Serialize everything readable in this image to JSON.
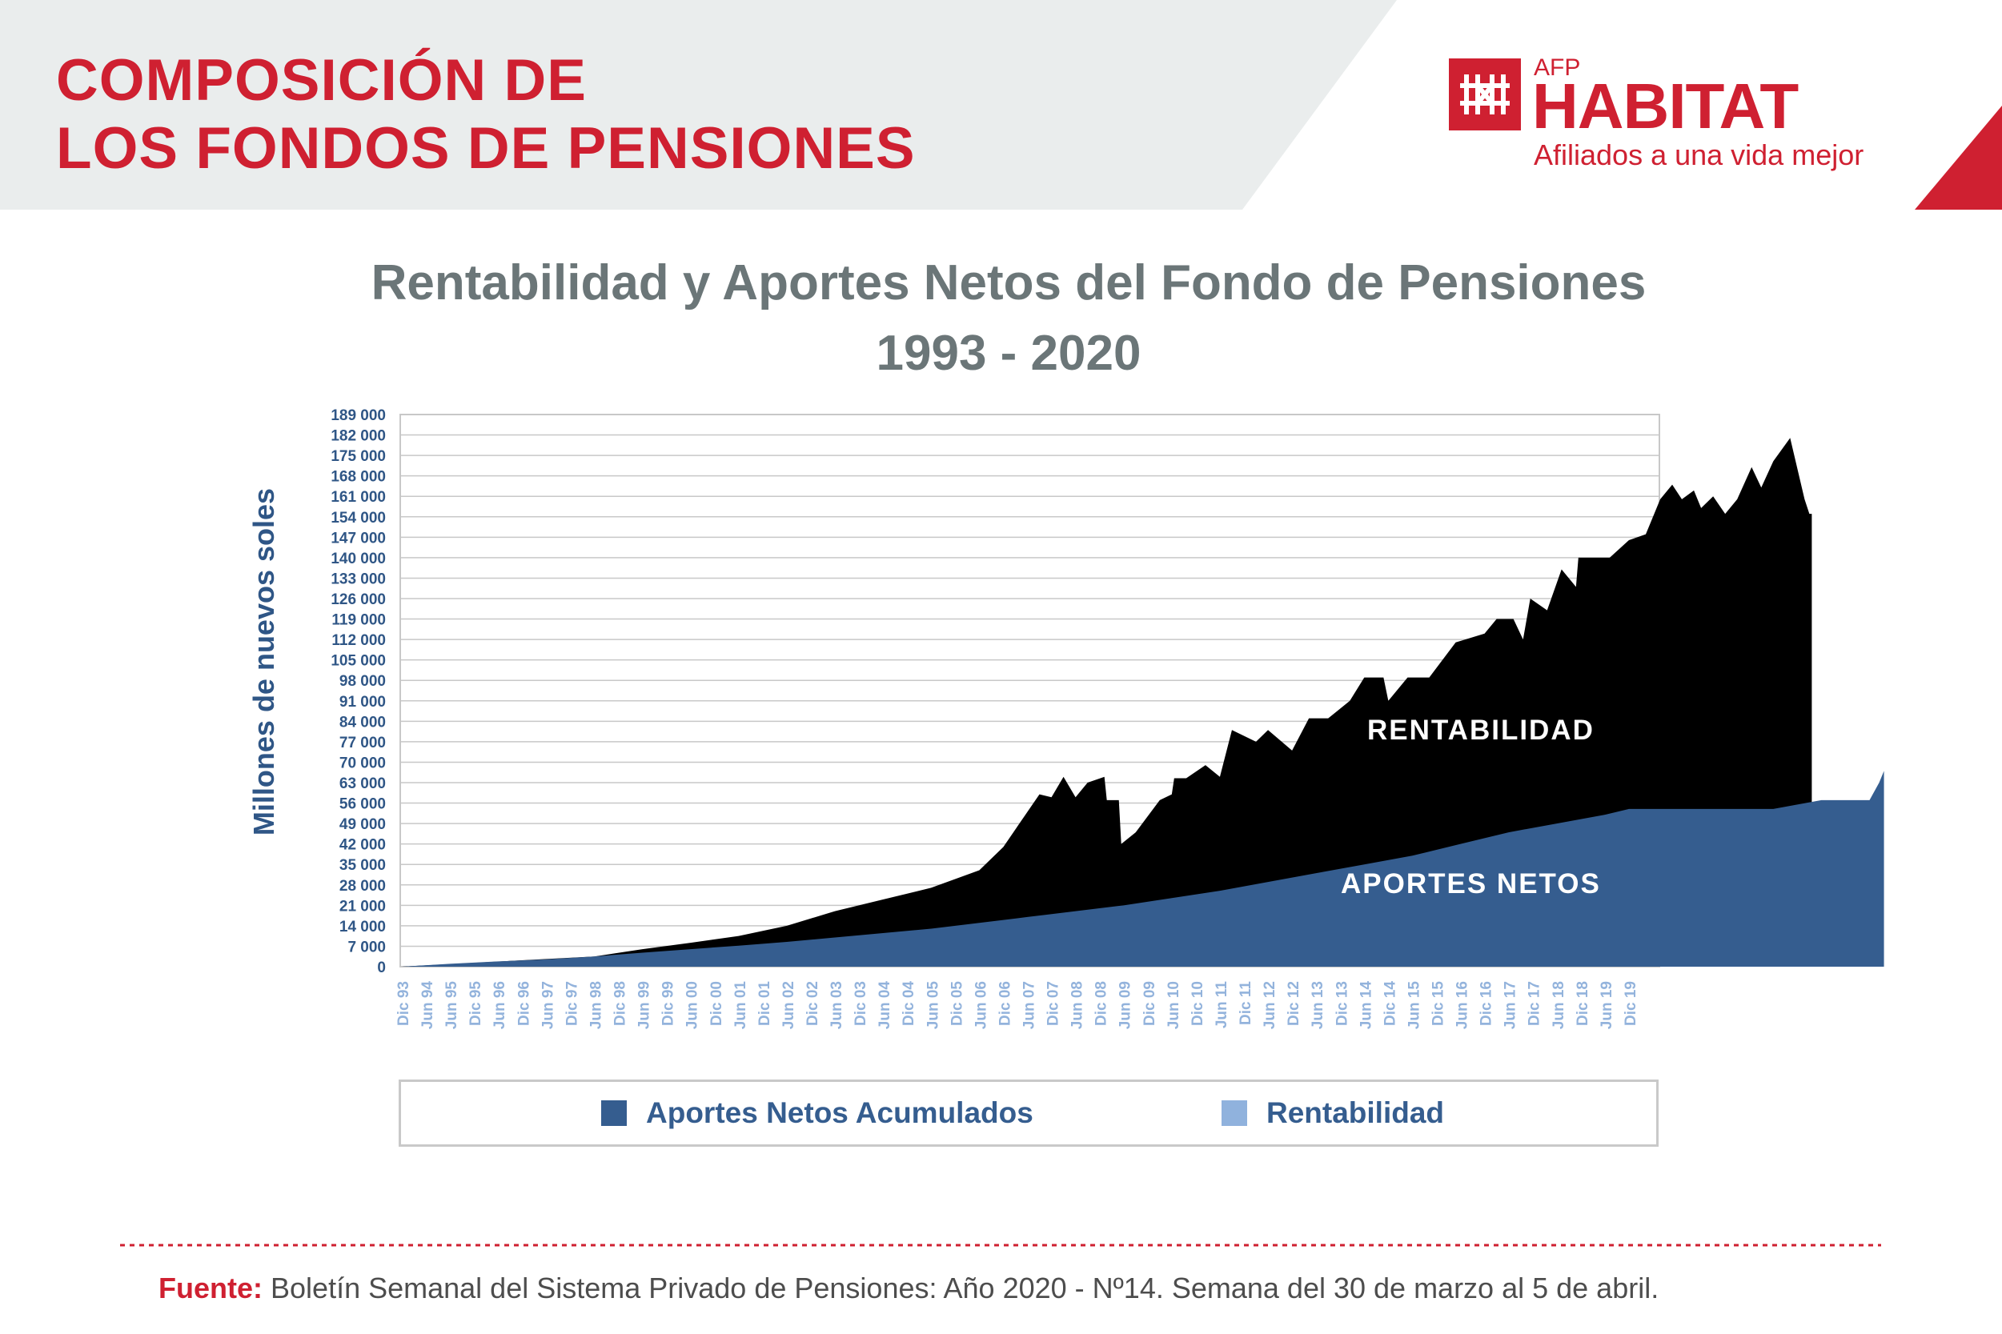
{
  "header": {
    "title_line1": "COMPOSICIÓN DE",
    "title_line2": "LOS FONDOS DE PENSIONES"
  },
  "logo": {
    "afp": "AFP",
    "name": "HABITAT",
    "tagline": "Afiliados a una vida mejor",
    "icon": "habitat-logo-icon"
  },
  "colors": {
    "accent_red": "#cf2031",
    "header_band": "#eaeded",
    "title_gray": "#6b7678",
    "dark_blue": "#355d8f",
    "light_blue": "#90b2dd",
    "axis_text": "#2f5686",
    "xtick_text": "#93b3dc",
    "grid": "#c8c8c8"
  },
  "source": {
    "label": "Fuente:",
    "text": "Boletín Semanal del Sistema Privado de Pensiones: Año 2020 - Nº14. Semana del 30 de marzo al 5 de abril."
  },
  "chart_data": {
    "type": "area",
    "stacked": true,
    "title": "Rentabilidad y Aportes Netos del Fondo de Pensiones",
    "subtitle": "1993 - 2020",
    "ylabel": "Millones de nuevos soles",
    "xlabel": "",
    "ylim": [
      0,
      189000
    ],
    "y_ticks": [
      "0",
      "7 000",
      "14 000",
      "21 000",
      "28 000",
      "35 000",
      "42 000",
      "49 000",
      "56 000",
      "63 000",
      "70 000",
      "77 000",
      "84 000",
      "91 000",
      "98 000",
      "105 000",
      "112 000",
      "119 000",
      "126 000",
      "133 000",
      "140 000",
      "147 000",
      "154 000",
      "161 000",
      "168 000",
      "175 000",
      "182 000",
      "189 000"
    ],
    "x_ticks": [
      "Dic 93",
      "Jun 94",
      "Jun 95",
      "Dic 95",
      "Jun 96",
      "Dic 96",
      "Jun 97",
      "Dic 97",
      "Jun 98",
      "Dic 98",
      "Jun 99",
      "Dic 99",
      "Jun 00",
      "Dic 00",
      "Jun 01",
      "Dic 01",
      "Jun 02",
      "Dic 02",
      "Jun 03",
      "Dic 03",
      "Jun 04",
      "Dic 04",
      "Jun 05",
      "Dic 05",
      "Jun 06",
      "Dic 06",
      "Jun 07",
      "Dic 07",
      "Jun 08",
      "Dic 08",
      "Jun 09",
      "Dic 09",
      "Jun 10",
      "Dic 10",
      "Jun 11",
      "Dic 11",
      "Jun 12",
      "Dic 12",
      "Jun 13",
      "Dic 13",
      "Jun 14",
      "Dic 14",
      "Jun 15",
      "Dic 15",
      "Jun 16",
      "Dic 16",
      "Jun 17",
      "Dic 17",
      "Jun 18",
      "Dic 18",
      "Jun 19",
      "Dic 19"
    ],
    "grid": true,
    "legend_position": "bottom",
    "series": [
      {
        "name": "Aportes Netos Acumulados",
        "color": "#355d8f",
        "points": [
          [
            0,
            0
          ],
          [
            2,
            1000
          ],
          [
            4,
            1800
          ],
          [
            6,
            2500
          ],
          [
            8,
            3500
          ],
          [
            10,
            4800
          ],
          [
            12,
            6000
          ],
          [
            14,
            7200
          ],
          [
            16,
            8500
          ],
          [
            18,
            10000
          ],
          [
            20,
            11500
          ],
          [
            22,
            13000
          ],
          [
            24,
            15000
          ],
          [
            26,
            17000
          ],
          [
            28,
            19000
          ],
          [
            30,
            21000
          ],
          [
            32,
            23500
          ],
          [
            34,
            26000
          ],
          [
            36,
            29000
          ],
          [
            38,
            32000
          ],
          [
            40,
            35000
          ],
          [
            42,
            38000
          ],
          [
            44,
            42000
          ],
          [
            46,
            46000
          ],
          [
            48,
            49000
          ],
          [
            50,
            52000
          ],
          [
            51,
            54000
          ],
          [
            54,
            54000
          ],
          [
            57,
            54000
          ],
          [
            59,
            57000
          ],
          [
            61,
            57000
          ],
          [
            61.4,
            63000
          ],
          [
            61.6,
            67000
          ]
        ]
      },
      {
        "name": "Rentabilidad",
        "total_points": [
          [
            0,
            0
          ],
          [
            8,
            3500
          ],
          [
            10,
            6000
          ],
          [
            12,
            8200
          ],
          [
            14,
            10500
          ],
          [
            16,
            14000
          ],
          [
            18,
            19000
          ],
          [
            20,
            23000
          ],
          [
            21,
            25000
          ],
          [
            22,
            27000
          ],
          [
            24,
            33000
          ],
          [
            25,
            41000
          ],
          [
            26,
            53000
          ],
          [
            26.5,
            59000
          ],
          [
            27,
            58000
          ],
          [
            27.5,
            65000
          ],
          [
            28,
            58000
          ],
          [
            28.5,
            63000
          ],
          [
            29.2,
            65000
          ],
          [
            29.3,
            57000
          ],
          [
            29.8,
            57000
          ],
          [
            29.9,
            42000
          ],
          [
            30.5,
            46000
          ],
          [
            31.5,
            57000
          ],
          [
            32,
            59000
          ],
          [
            32.1,
            64500
          ],
          [
            32.6,
            64500
          ],
          [
            33.4,
            69000
          ],
          [
            34,
            65000
          ],
          [
            34.5,
            81000
          ],
          [
            35.5,
            77000
          ],
          [
            36,
            81000
          ],
          [
            37,
            74000
          ],
          [
            37.7,
            85000
          ],
          [
            38.5,
            85000
          ],
          [
            39.4,
            91000
          ],
          [
            40,
            99000
          ],
          [
            40.8,
            99000
          ],
          [
            41,
            91000
          ],
          [
            41.8,
            99000
          ],
          [
            42.7,
            99000
          ],
          [
            43.8,
            111000
          ],
          [
            45,
            114000
          ],
          [
            45.5,
            119000
          ],
          [
            46.2,
            119000
          ],
          [
            46.6,
            112000
          ],
          [
            46.9,
            126000
          ],
          [
            47.6,
            122000
          ],
          [
            48.2,
            136000
          ],
          [
            48.8,
            130000
          ],
          [
            48.9,
            140000
          ],
          [
            50.2,
            140000
          ],
          [
            51,
            146000
          ],
          [
            51.7,
            148000
          ],
          [
            52.3,
            160000
          ],
          [
            52.8,
            165000
          ],
          [
            53.2,
            160000
          ],
          [
            53.7,
            163000
          ],
          [
            54,
            157000
          ],
          [
            54.5,
            161000
          ],
          [
            55,
            155000
          ],
          [
            55.5,
            160000
          ],
          [
            56.1,
            171000
          ],
          [
            56.5,
            164000
          ],
          [
            57,
            173000
          ],
          [
            57.7,
            181000
          ],
          [
            58.3,
            160000
          ],
          [
            58.5,
            155000
          ],
          [
            58.6,
            155000
          ]
        ]
      }
    ],
    "annotations": [
      "RENTABILIDAD",
      "APORTES NETOS"
    ]
  }
}
